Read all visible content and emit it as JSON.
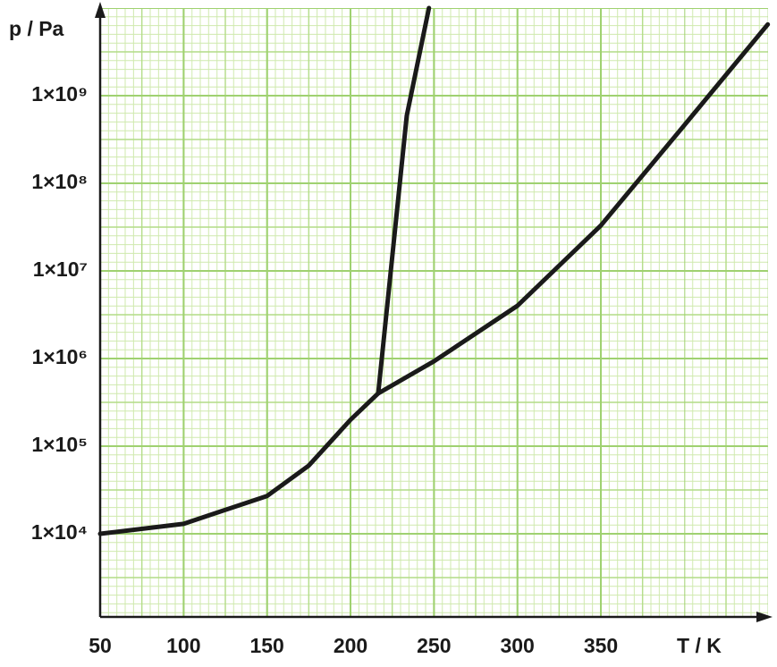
{
  "chart_data": {
    "type": "line",
    "xlabel": "T / K",
    "ylabel": "p / Pa",
    "log_y": true,
    "grid": true,
    "xlim": [
      50,
      450
    ],
    "ylim": [
      1000,
      10000000000
    ],
    "xticks": [
      50,
      100,
      150,
      200,
      250,
      300,
      350
    ],
    "yticks": [
      {
        "value": 10000,
        "label": "1×10⁴"
      },
      {
        "value": 100000,
        "label": "1×10⁵"
      },
      {
        "value": 1000000,
        "label": "1×10⁶"
      },
      {
        "value": 10000000,
        "label": "1×10⁷"
      },
      {
        "value": 100000000,
        "label": "1×10⁸"
      },
      {
        "value": 1000000000,
        "label": "1×10⁹"
      }
    ],
    "series": [
      {
        "color": "#1a1a1a",
        "x": [
          50,
          100,
          150,
          175,
          200,
          216.6,
          250,
          300,
          350,
          400,
          450
        ],
        "values": [
          10000,
          13000,
          27000,
          60000,
          200000,
          400000,
          930000,
          4000000,
          33000000,
          460000000,
          6500000000
        ]
      },
      {
        "color": "#1a1a1a",
        "x": [
          216.6,
          233.7,
          247
        ],
        "values": [
          400000,
          590000000,
          10000000000
        ]
      }
    ]
  }
}
